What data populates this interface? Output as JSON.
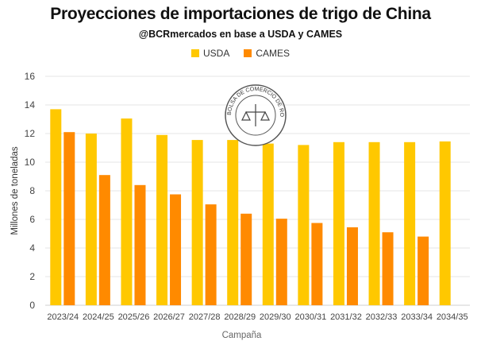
{
  "chart_data": {
    "type": "bar",
    "title": "Proyecciones de importaciones de trigo de China",
    "subtitle": "@BCRmercados en base a USDA y CAMES",
    "xlabel": "Campaña",
    "ylabel": "Millones de toneladas",
    "ylim": [
      0,
      16
    ],
    "yticks": [
      0,
      2,
      4,
      6,
      8,
      10,
      12,
      14,
      16
    ],
    "grid": true,
    "legend_position": "top-center",
    "categories": [
      "2023/24",
      "2024/25",
      "2025/26",
      "2026/27",
      "2027/28",
      "2028/29",
      "2029/30",
      "2030/31",
      "2031/32",
      "2032/33",
      "2033/34",
      "2034/35"
    ],
    "series": [
      {
        "name": "USDA",
        "color": "#FFC800",
        "values": [
          13.7,
          12.0,
          13.05,
          11.9,
          11.55,
          11.55,
          11.3,
          11.2,
          11.4,
          11.4,
          11.4,
          11.45
        ]
      },
      {
        "name": "CAMES",
        "color": "#FF8A00",
        "values": [
          12.1,
          9.1,
          8.4,
          7.75,
          7.05,
          6.4,
          6.05,
          5.75,
          5.45,
          5.1,
          4.8,
          null
        ]
      }
    ]
  },
  "watermark": {
    "text": "BOLSA DE COMERCIO DE ROSARIO"
  }
}
